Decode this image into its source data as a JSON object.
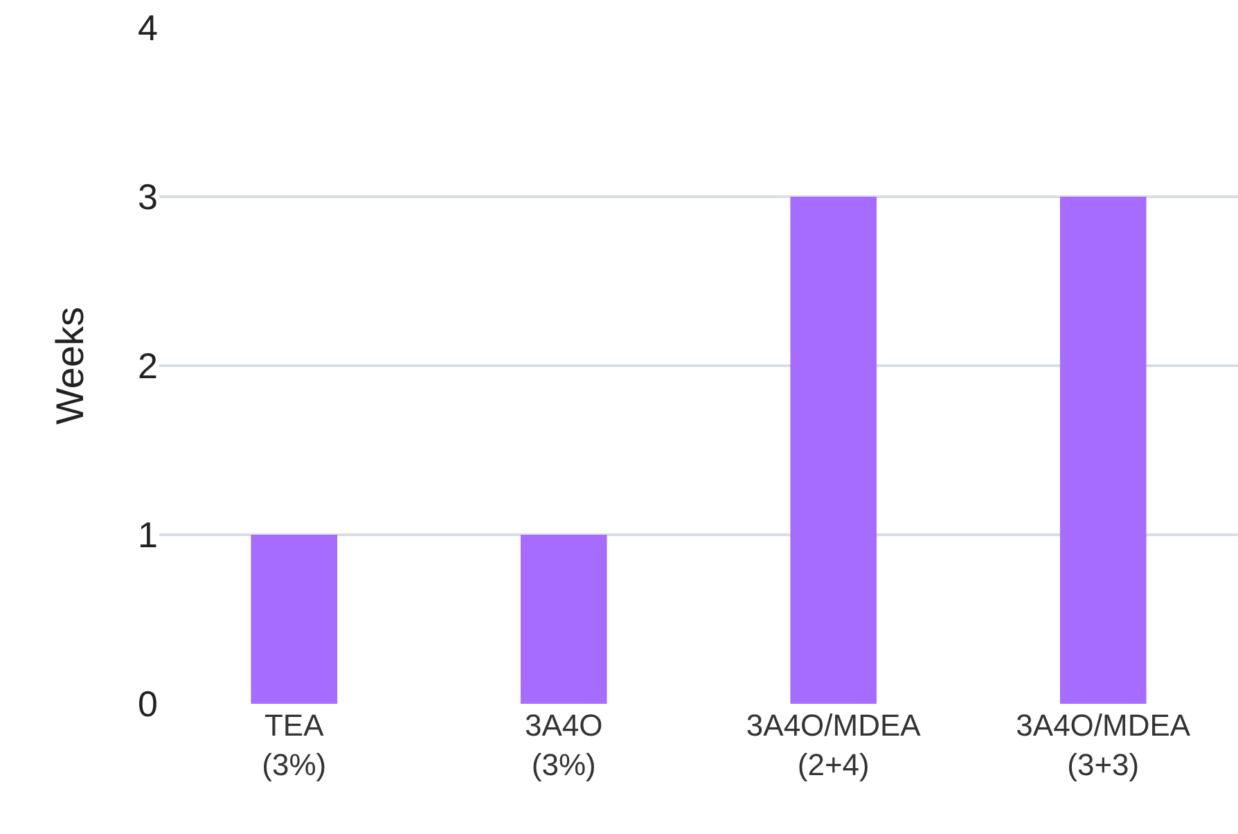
{
  "chart_data": {
    "type": "bar",
    "ylabel": "Weeks",
    "categories": [
      "TEA\n(3%)",
      "3A4O\n(3%)",
      "3A4O/MDEA\n(2+4)",
      "3A4O/MDEA\n(3+3)"
    ],
    "values": [
      1,
      1,
      3,
      3
    ],
    "color": "#a66bff",
    "ylim": [
      0,
      4
    ],
    "yticks": [
      0,
      1,
      2,
      3,
      4
    ],
    "grid": "y",
    "legend": false
  }
}
